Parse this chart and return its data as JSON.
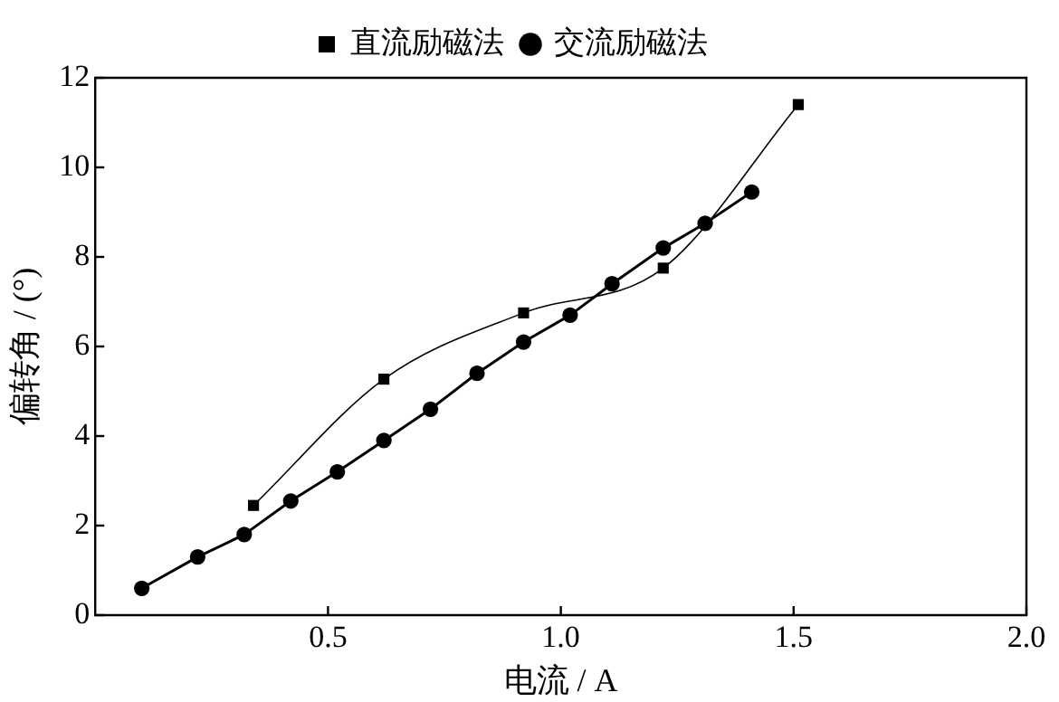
{
  "chart_data": {
    "type": "line",
    "xlabel": "电流 / A",
    "ylabel": "偏转角 / (°)",
    "xlim": [
      0,
      2
    ],
    "xticks": [
      0.5,
      {
        "value": 1,
        "label": "1.0"
      },
      1.5,
      {
        "value": 2,
        "label": "2.0"
      }
    ],
    "ylim": [
      0,
      12
    ],
    "yticks": [
      0,
      2,
      4,
      6,
      8,
      10,
      12
    ],
    "grid": false,
    "legend": "top",
    "series": [
      {
        "name": "直流励磁法",
        "color": "#000000",
        "marker": "square",
        "x": [
          0.34,
          0.62,
          0.92,
          1.22,
          1.51
        ],
        "values": [
          2.45,
          5.27,
          6.75,
          7.75,
          11.4
        ]
      },
      {
        "name": "交流励磁法",
        "color": "#000000",
        "marker": "circle",
        "x": [
          0.1,
          0.22,
          0.32,
          0.42,
          0.52,
          0.62,
          0.72,
          0.82,
          0.92,
          1.02,
          1.11,
          1.22,
          1.31,
          1.41
        ],
        "values": [
          0.6,
          1.3,
          1.8,
          2.55,
          3.2,
          3.9,
          4.6,
          5.4,
          6.1,
          6.7,
          7.4,
          8.2,
          8.75,
          9.45
        ]
      }
    ]
  }
}
